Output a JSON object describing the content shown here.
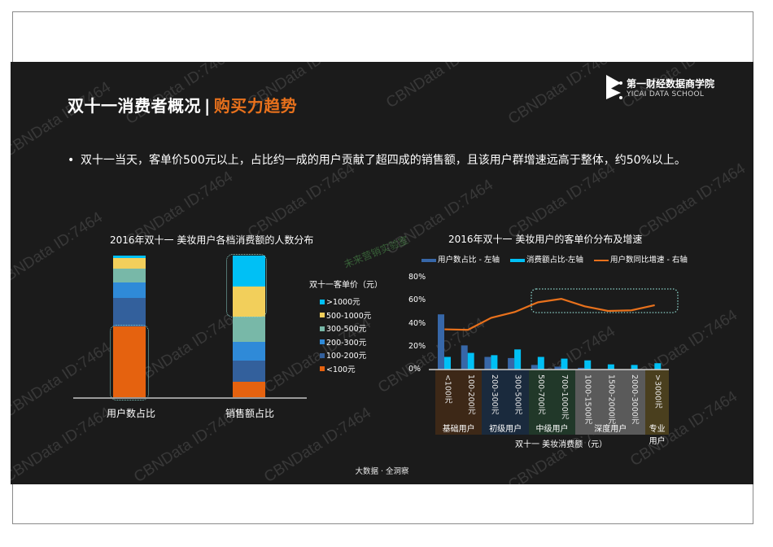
{
  "slide": {
    "title_main": "双十一消费者概况",
    "title_sep": "|",
    "title_accent": "购买力趋势",
    "logo": {
      "cn": "第一财经数据商学院",
      "en": "YICAI DATA SCHOOL"
    },
    "bullet": "双十一当天，客单价500元以上，占比约一成的用户贡献了超四成的销售额，且该用户群增速远高于整体，约50%以上。",
    "footer": "大数据 · 全洞察",
    "watermark": "CBNData ID:7464",
    "lab_watermark": "未来营销实验室",
    "colors": {
      "accent": "#e8711c",
      "background": "#1b1b1b",
      "gt1000": "#00c0f5",
      "c500_1000": "#f2cf5b",
      "c300_500": "#78b8a8",
      "c200_300": "#2f8ad8",
      "c100_200": "#33609c",
      "lt100": "#e5620f",
      "user_bar": "#3767a8",
      "sales_bar": "#00c0f5",
      "growth_line": "#e8711c"
    }
  },
  "chart_data": [
    {
      "type": "bar",
      "stacked": true,
      "title": "2016年双十一 美妆用户各档消费额的人数分布",
      "categories": [
        "用户数占比",
        "销售额占比"
      ],
      "legend_title": "双十一客单价（元）",
      "series": [
        {
          "name": "<100元",
          "values": [
            50,
            11
          ]
        },
        {
          "name": "100-200元",
          "values": [
            20,
            15
          ]
        },
        {
          "name": "200-300元",
          "values": [
            11,
            13
          ]
        },
        {
          "name": "300-500元",
          "values": [
            10,
            18
          ]
        },
        {
          "name": "500-1000元",
          "values": [
            7,
            21
          ]
        },
        {
          "name": ">1000元",
          "values": [
            2,
            22
          ]
        }
      ],
      "legend_order": [
        ">1000元",
        "500-1000元",
        "300-500元",
        "200-300元",
        "100-200元",
        "<100元"
      ],
      "ylabel": "",
      "xlabel": "",
      "unit": "%"
    },
    {
      "type": "bar",
      "combo": "bar+line",
      "title": "2016年双十一 美妆用户的客单价分布及增速",
      "xlabel": "双十一 美妆消费额（元）",
      "categories": [
        "<100元",
        "100-200元",
        "200-300元",
        "300-500元",
        "500-700元",
        "700-1000元",
        "1000-1500元",
        "1500-2000元",
        "2000-3000元",
        ">3000元"
      ],
      "groups": [
        {
          "name": "基础用户",
          "span": [
            0,
            1
          ]
        },
        {
          "name": "初级用户",
          "span": [
            2,
            3
          ]
        },
        {
          "name": "中级用户",
          "span": [
            4,
            5
          ]
        },
        {
          "name": "深度用户",
          "span": [
            6,
            8
          ]
        },
        {
          "name": "专业用户",
          "span": [
            9,
            9
          ]
        }
      ],
      "yticks": [
        "0%",
        "20%",
        "40%",
        "60%",
        "80%"
      ],
      "ylim": [
        0,
        80
      ],
      "series": [
        {
          "name": "用户数占比 - 左轴",
          "type": "bar",
          "values": [
            48,
            21,
            11,
            10,
            4,
            2.5,
            1.5,
            0.5,
            0.2,
            0.1
          ]
        },
        {
          "name": "消费额占比-左轴",
          "type": "bar",
          "values": [
            11,
            14.5,
            12.5,
            17.5,
            11,
            9.5,
            8,
            4.5,
            4,
            5.5
          ]
        },
        {
          "name": "用户数同比增速 - 右轴",
          "type": "line",
          "values": [
            35,
            34.5,
            45,
            50,
            58.5,
            61.5,
            55,
            51,
            51.5,
            56
          ]
        }
      ]
    }
  ]
}
